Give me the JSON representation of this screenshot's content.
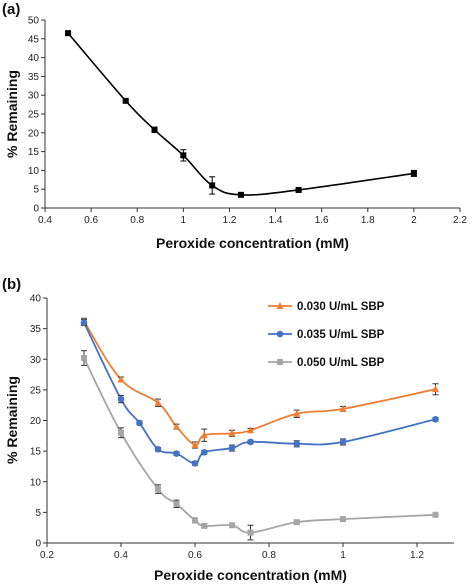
{
  "chart_data": [
    {
      "type": "line",
      "panel_label": "(a)",
      "xlabel": "Peroxide concentration (mM)",
      "ylabel": "% Remaining",
      "xlim": [
        0.4,
        2.2
      ],
      "ylim": [
        0,
        50
      ],
      "xticks": [
        "0.4",
        "0.6",
        "0.8",
        "1",
        "1.2",
        "1.4",
        "1.6",
        "1.8",
        "2",
        "2.2"
      ],
      "yticks": [
        "0",
        "5",
        "10",
        "15",
        "20",
        "25",
        "30",
        "35",
        "40",
        "45",
        "50"
      ],
      "grid": false,
      "series": [
        {
          "color": "#000000",
          "marker": "square",
          "x": [
            0.5,
            0.75,
            0.875,
            1.0,
            1.125,
            1.25,
            1.5,
            2.0
          ],
          "y": [
            46.5,
            28.5,
            20.8,
            14.0,
            6.0,
            3.5,
            4.8,
            9.2
          ],
          "err": [
            0.4,
            0.4,
            0.7,
            1.5,
            2.3,
            0.3,
            0.4,
            0.8
          ]
        }
      ]
    },
    {
      "type": "line",
      "panel_label": "(b)",
      "xlabel": "Peroxide concentration (mM)",
      "ylabel": "% Remaining",
      "xlim": [
        0.2,
        1.3
      ],
      "ylim": [
        0,
        40
      ],
      "xticks": [
        "0.2",
        "0.4",
        "0.6",
        "0.8",
        "1",
        "1.2"
      ],
      "yticks": [
        "0",
        "5",
        "10",
        "15",
        "20",
        "25",
        "30",
        "35",
        "40"
      ],
      "grid": false,
      "legend_position": "top-right",
      "series": [
        {
          "name": "0.030 U/mL SBP",
          "color": "#ed7d31",
          "marker": "triangle",
          "x": [
            0.3,
            0.4,
            0.5,
            0.55,
            0.6,
            0.625,
            0.7,
            0.75,
            0.875,
            1.0,
            1.25
          ],
          "y": [
            36.2,
            26.7,
            22.9,
            19.0,
            16.0,
            17.6,
            17.9,
            18.4,
            21.1,
            21.9,
            25.1
          ],
          "err": [
            0.5,
            0.4,
            0.6,
            0.4,
            0.5,
            1.0,
            0.5,
            0.3,
            0.6,
            0.4,
            0.9
          ]
        },
        {
          "name": "0.035 U/mL SBP",
          "color": "#4472c4",
          "marker": "circle",
          "x": [
            0.3,
            0.4,
            0.45,
            0.5,
            0.55,
            0.6,
            0.625,
            0.7,
            0.75,
            0.875,
            1.0,
            1.25
          ],
          "y": [
            36.0,
            23.5,
            19.6,
            15.3,
            14.6,
            13.0,
            14.8,
            15.5,
            16.5,
            16.2,
            16.5,
            20.2
          ],
          "err": [
            0.5,
            0.6,
            0.3,
            0.3,
            0.3,
            0.3,
            0.3,
            0.5,
            0.3,
            0.5,
            0.5,
            0.3
          ]
        },
        {
          "name": "0.050 U/mL SBP",
          "color": "#a5a5a5",
          "marker": "square",
          "x": [
            0.3,
            0.4,
            0.5,
            0.55,
            0.6,
            0.625,
            0.7,
            0.75,
            0.875,
            1.0,
            1.25
          ],
          "y": [
            30.2,
            18.0,
            8.8,
            6.4,
            3.7,
            2.8,
            2.9,
            1.7,
            3.4,
            3.9,
            4.6
          ],
          "err": [
            1.2,
            0.8,
            0.7,
            0.6,
            0.4,
            0.3,
            0.3,
            1.2,
            0.3,
            0.3,
            0.3
          ]
        }
      ]
    }
  ]
}
